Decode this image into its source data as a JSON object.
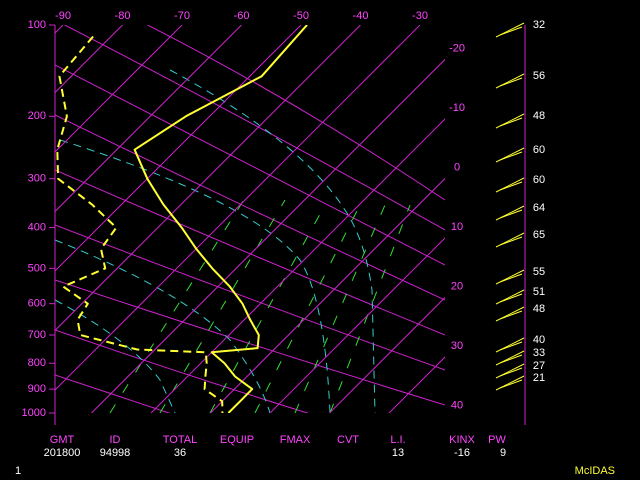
{
  "chart_data": {
    "type": "skew-t",
    "ylim": [
      100,
      1000
    ],
    "yticks": [
      100,
      200,
      300,
      400,
      500,
      600,
      700,
      800,
      900,
      1000
    ],
    "xticks_top": [
      -90,
      -80,
      -70,
      -60,
      -50,
      -40,
      -30
    ],
    "xticks_right": [
      -20,
      -10,
      0,
      10,
      20,
      30,
      40
    ],
    "grid_color": "#cc22cc",
    "series": [
      {
        "color": "#ffff33",
        "dashed": false,
        "pressure": [
          100,
          150,
          200,
          250,
          300,
          350,
          400,
          450,
          500,
          550,
          600,
          650,
          700,
          745,
          760,
          800,
          850,
          900,
          950,
          1000
        ],
        "values": [
          -49,
          -48,
          -54,
          -57,
          -50,
          -43,
          -36,
          -30,
          -24,
          -18,
          -13,
          -9,
          -5,
          -3,
          -10,
          -6,
          -2,
          3,
          3,
          3
        ]
      },
      {
        "color": "#ffff33",
        "dashed": true,
        "pressure": [
          110,
          150,
          200,
          250,
          300,
          350,
          400,
          450,
          500,
          550,
          600,
          650,
          700,
          750,
          760,
          800,
          850,
          900,
          950,
          1000
        ],
        "values": [
          -83,
          -82,
          -74,
          -70,
          -65,
          -55,
          -47,
          -46,
          -42,
          -46,
          -39,
          -38,
          -35,
          -23,
          -11,
          -9,
          -7,
          -5,
          0,
          2
        ]
      }
    ],
    "winds": {
      "color": "#ffff33",
      "speeds": [
        32,
        56,
        48,
        60,
        60,
        64,
        65,
        55,
        51,
        48,
        40,
        33,
        27,
        21
      ]
    }
  },
  "table": {
    "columns": [
      {
        "header": "GMT",
        "value": 201800
      },
      {
        "header": "ID",
        "value": 94998
      },
      {
        "header": "TOTAL",
        "value": 36
      },
      {
        "header": "EQUIP"
      },
      {
        "header": "FMAX"
      },
      {
        "header": "CVT"
      },
      {
        "header": "L.I.",
        "value": 13
      },
      {
        "header": "KINX",
        "value": -16
      },
      {
        "header": "PW",
        "value": 9
      }
    ]
  },
  "footer": {
    "page": "1",
    "brand": "McIDAS"
  }
}
